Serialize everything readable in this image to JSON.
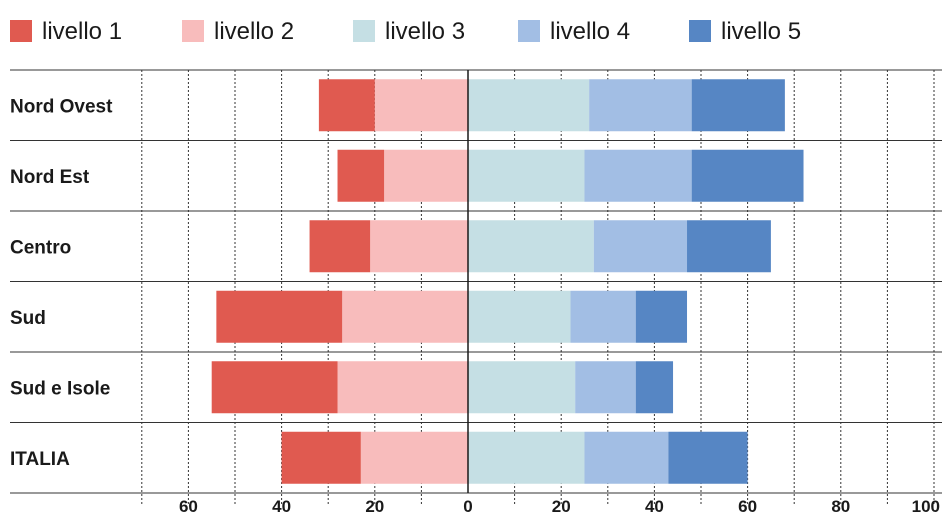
{
  "chart_data": {
    "type": "bar",
    "orientation": "horizontal",
    "stacking": "diverging",
    "categories": [
      "Nord Ovest",
      "Nord Est",
      "Centro",
      "Sud",
      "Sud e Isole",
      "ITALIA"
    ],
    "series": [
      {
        "name": "livello 1",
        "side": "negative",
        "color": "#e05a50",
        "values": [
          12,
          10,
          13,
          27,
          27,
          17
        ]
      },
      {
        "name": "livello 2",
        "side": "negative",
        "color": "#f8bcbc",
        "values": [
          20,
          18,
          21,
          27,
          28,
          23
        ]
      },
      {
        "name": "livello 3",
        "side": "positive",
        "color": "#c5dfe4",
        "values": [
          26,
          25,
          27,
          22,
          23,
          25
        ]
      },
      {
        "name": "livello 4",
        "side": "positive",
        "color": "#a2bee4",
        "values": [
          22,
          23,
          20,
          14,
          13,
          18
        ]
      },
      {
        "name": "livello 5",
        "side": "positive",
        "color": "#5686c4",
        "values": [
          20,
          24,
          18,
          11,
          8,
          17
        ]
      }
    ],
    "xlim": [
      -70,
      100
    ],
    "xticks": [
      -60,
      -40,
      -20,
      0,
      20,
      40,
      60,
      80,
      100
    ],
    "xtick_labels": [
      "60",
      "40",
      "20",
      "0",
      "20",
      "40",
      "60",
      "80",
      "100"
    ],
    "grid": "vertical dashed every 10",
    "legend": "top-left"
  }
}
